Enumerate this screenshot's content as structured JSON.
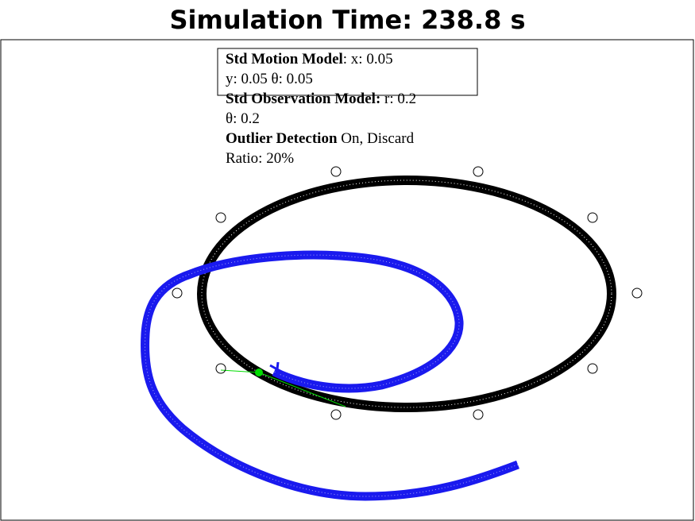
{
  "header": {
    "title": "Simulation Time: 238.8 s"
  },
  "info": {
    "lines": [
      {
        "bold": "Std Motion Model",
        "text": ": x: 0.05"
      },
      {
        "bold": null,
        "text": "y: 0.05 θ: 0.05"
      },
      {
        "bold": "Std Observation Model:",
        "text": " r: 0.2"
      },
      {
        "bold": null,
        "text": "θ: 0.2"
      },
      {
        "bold": "Outlier Detection",
        "text": " On, Discard"
      },
      {
        "bold": null,
        "text": "Ratio: 20%"
      }
    ]
  }
}
